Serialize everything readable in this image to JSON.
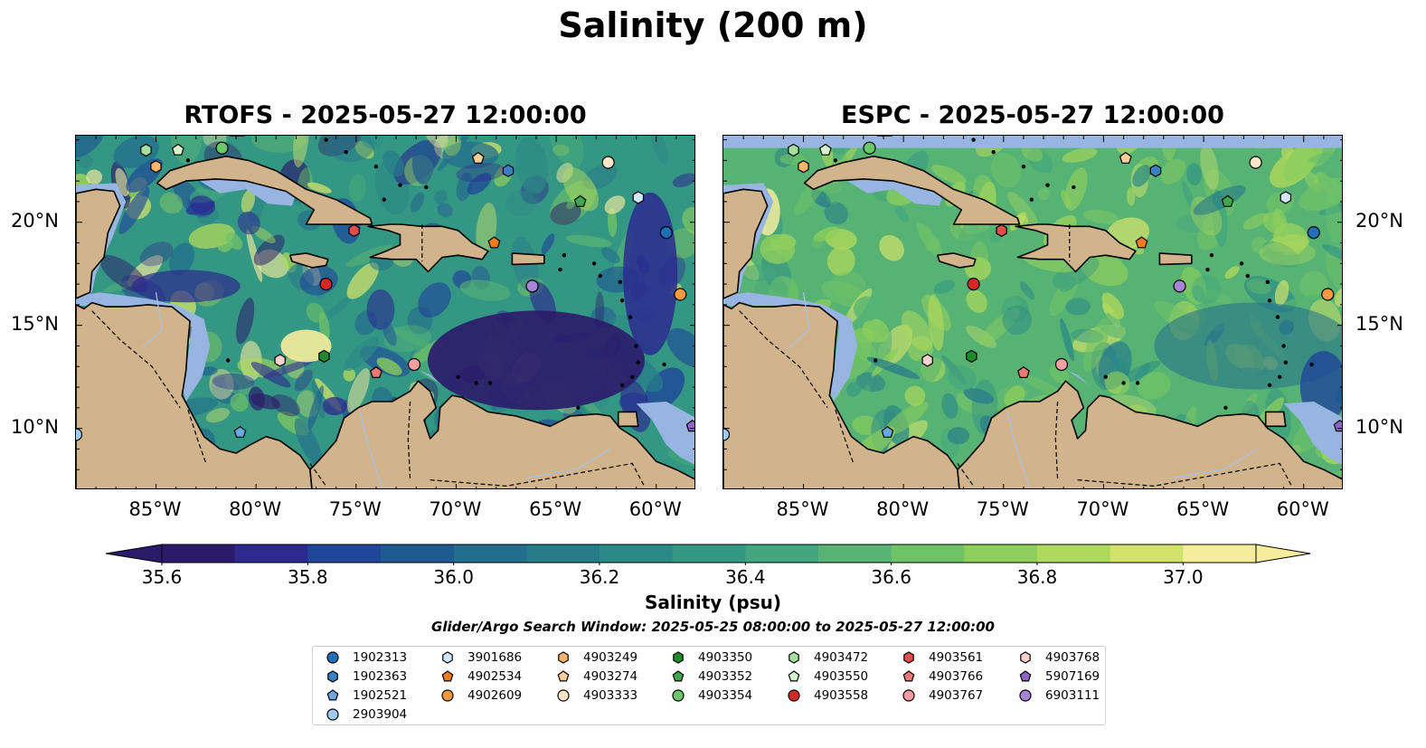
{
  "figure": {
    "suptitle": "Salinity (200 m)"
  },
  "panels": [
    {
      "id": "rtofs",
      "title": "RTOFS - 2025-05-27 12:00:00",
      "lon_ticks": [
        "85°W",
        "80°W",
        "75°W",
        "70°W",
        "65°W",
        "60°W"
      ],
      "lat_ticks": [
        "20°N",
        "15°N",
        "10°N"
      ],
      "lat_labels_side": "left"
    },
    {
      "id": "espc",
      "title": "ESPC - 2025-05-27 12:00:00",
      "lon_ticks": [
        "85°W",
        "80°W",
        "75°W",
        "70°W",
        "65°W",
        "60°W"
      ],
      "lat_ticks": [
        "20°N",
        "15°N",
        "10°N"
      ],
      "lat_labels_side": "right"
    }
  ],
  "colorbar": {
    "label": "Salinity (psu)",
    "min": 35.6,
    "max": 37.0,
    "step": 0.1,
    "extend": "both",
    "tick_labels": [
      "35.6",
      "35.8",
      "36.0",
      "36.2",
      "36.4",
      "36.6",
      "36.8",
      "37.0"
    ],
    "colors": [
      "#2b1c6b",
      "#2c2a8f",
      "#1f4699",
      "#1e5a8f",
      "#226e8c",
      "#277c89",
      "#2c8a86",
      "#349784",
      "#42a57d",
      "#56b374",
      "#70c266",
      "#8dce5c",
      "#afd95a",
      "#d0e26a",
      "#f5ec9c"
    ],
    "land_color": "#d2b48c",
    "masked_color": "#97b5e0"
  },
  "search_window": "Glider/Argo Search Window: 2025-05-25 08:00:00 to 2025-05-27 12:00:00",
  "legend": {
    "columns": [
      [
        {
          "id": "1902313",
          "marker": "circle",
          "color": "#1f6fb8"
        },
        {
          "id": "1902363",
          "marker": "hexagon",
          "color": "#3a7fc6"
        },
        {
          "id": "1902521",
          "marker": "pentagon",
          "color": "#6aa8e0"
        },
        {
          "id": "2903904",
          "marker": "circle",
          "color": "#9ccaf0"
        }
      ],
      [
        {
          "id": "3901686",
          "marker": "hexagon",
          "color": "#cfe8fb"
        },
        {
          "id": "4902534",
          "marker": "pentagon",
          "color": "#f07c1a"
        },
        {
          "id": "4902609",
          "marker": "circle",
          "color": "#f59a3e"
        }
      ],
      [
        {
          "id": "4903249",
          "marker": "hexagon",
          "color": "#f9b46e"
        },
        {
          "id": "4903274",
          "marker": "pentagon",
          "color": "#fccf98"
        },
        {
          "id": "4903333",
          "marker": "circle",
          "color": "#fde6c8"
        }
      ],
      [
        {
          "id": "4903350",
          "marker": "hexagon",
          "color": "#1e8a2c"
        },
        {
          "id": "4903352",
          "marker": "pentagon",
          "color": "#3fa84a"
        },
        {
          "id": "4903354",
          "marker": "circle",
          "color": "#6cc66a"
        }
      ],
      [
        {
          "id": "4903472",
          "marker": "hexagon",
          "color": "#a6e0a0"
        },
        {
          "id": "4903550",
          "marker": "pentagon",
          "color": "#d6f2cf"
        },
        {
          "id": "4903558",
          "marker": "circle",
          "color": "#d62728"
        }
      ],
      [
        {
          "id": "4903561",
          "marker": "hexagon",
          "color": "#e14c4c"
        },
        {
          "id": "4903766",
          "marker": "pentagon",
          "color": "#ec7777"
        },
        {
          "id": "4903767",
          "marker": "circle",
          "color": "#f4a0a0"
        }
      ],
      [
        {
          "id": "4903768",
          "marker": "hexagon",
          "color": "#fbd0d0"
        },
        {
          "id": "5907169",
          "marker": "pentagon",
          "color": "#8f64c4"
        },
        {
          "id": "6903111",
          "marker": "circle",
          "color": "#a784d6"
        }
      ]
    ]
  },
  "floats_on_map": [
    {
      "id": "4903472",
      "lon": -85.5,
      "lat": 23.5
    },
    {
      "id": "4903550",
      "lon": -83.9,
      "lat": 23.5
    },
    {
      "id": "4903354",
      "lon": -81.7,
      "lat": 23.6
    },
    {
      "id": "4903249",
      "lon": -85.0,
      "lat": 22.7
    },
    {
      "id": "4903274",
      "lon": -68.9,
      "lat": 23.1
    },
    {
      "id": "1902363",
      "lon": -67.4,
      "lat": 22.5
    },
    {
      "id": "4903333",
      "lon": -62.4,
      "lat": 22.9
    },
    {
      "id": "3901686",
      "lon": -60.9,
      "lat": 21.2
    },
    {
      "id": "4903352",
      "lon": -63.8,
      "lat": 21.0
    },
    {
      "id": "4903561",
      "lon": -75.1,
      "lat": 19.6
    },
    {
      "id": "4902534",
      "lon": -68.1,
      "lat": 19.0
    },
    {
      "id": "1902313",
      "lon": -59.5,
      "lat": 19.5
    },
    {
      "id": "4903558",
      "lon": -76.5,
      "lat": 17.0
    },
    {
      "id": "6903111",
      "lon": -66.2,
      "lat": 16.9
    },
    {
      "id": "4902609",
      "lon": -58.8,
      "lat": 16.5
    },
    {
      "id": "4903768",
      "lon": -78.8,
      "lat": 13.3
    },
    {
      "id": "4903350",
      "lon": -76.6,
      "lat": 13.5
    },
    {
      "id": "4903766",
      "lon": -74.0,
      "lat": 12.7
    },
    {
      "id": "4903767",
      "lon": -72.1,
      "lat": 13.1
    },
    {
      "id": "1902521",
      "lon": -80.8,
      "lat": 9.8
    },
    {
      "id": "2903904",
      "lon": -89.0,
      "lat": 9.7
    },
    {
      "id": "5907169",
      "lon": -58.2,
      "lat": 10.1
    }
  ]
}
